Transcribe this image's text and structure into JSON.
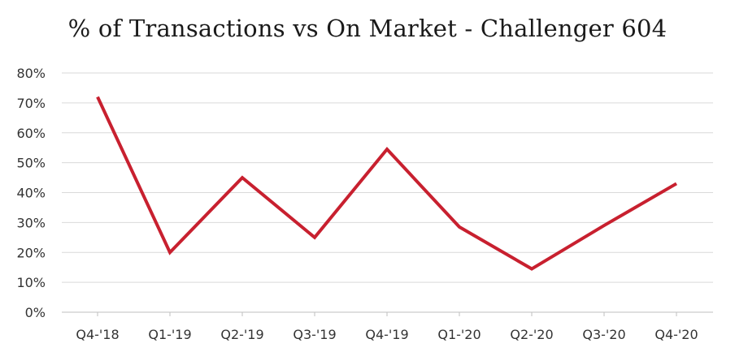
{
  "chart_data": {
    "type": "line",
    "title": "% of Transactions vs On Market - Challenger 604",
    "xlabel": "",
    "ylabel": "",
    "categories": [
      "Q4-'18",
      "Q1-'19",
      "Q2-'19",
      "Q3-'19",
      "Q4-'19",
      "Q1-'20",
      "Q2-'20",
      "Q3-'20",
      "Q4-'20"
    ],
    "series": [
      {
        "values": [
          72,
          20,
          45,
          25,
          54.5,
          28.5,
          14.5,
          29,
          43
        ]
      }
    ],
    "ylim": [
      0,
      80
    ],
    "yticks": [
      "0%",
      "10%",
      "20%",
      "30%",
      "40%",
      "50%",
      "60%",
      "70%",
      "80%"
    ],
    "grid": true,
    "legend": "none",
    "color": "#c8202f"
  }
}
